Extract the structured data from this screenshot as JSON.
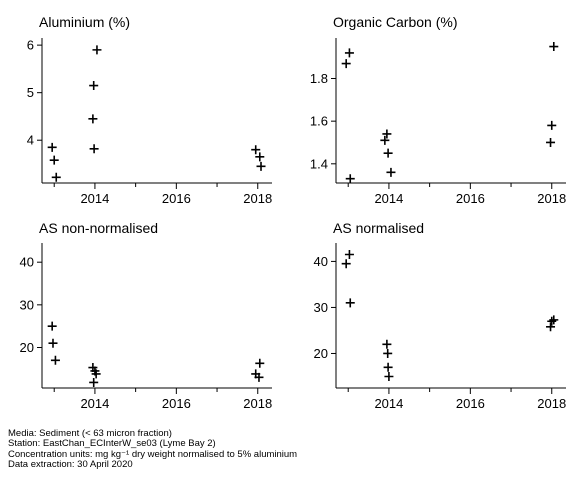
{
  "chart_data": [
    {
      "type": "scatter",
      "title": "Aluminium (%)",
      "x_ticks": [
        2014,
        2016,
        2018
      ],
      "x_range": [
        2012.7,
        2018.35
      ],
      "y_range": [
        3.1,
        6.15
      ],
      "y_ticks": [
        4,
        5,
        6
      ],
      "points": [
        {
          "x": 2012.95,
          "y": 3.85
        },
        {
          "x": 2013.0,
          "y": 3.58
        },
        {
          "x": 2013.05,
          "y": 3.22
        },
        {
          "x": 2013.95,
          "y": 4.45
        },
        {
          "x": 2013.97,
          "y": 5.15
        },
        {
          "x": 2013.98,
          "y": 3.82
        },
        {
          "x": 2014.05,
          "y": 5.9
        },
        {
          "x": 2017.95,
          "y": 3.8
        },
        {
          "x": 2018.05,
          "y": 3.65
        },
        {
          "x": 2018.08,
          "y": 3.45
        }
      ]
    },
    {
      "type": "scatter",
      "title": "Organic Carbon (%)",
      "x_ticks": [
        2014,
        2016,
        2018
      ],
      "x_range": [
        2012.7,
        2018.35
      ],
      "y_range": [
        1.31,
        1.99
      ],
      "y_ticks": [
        1.4,
        1.6,
        1.8
      ],
      "points": [
        {
          "x": 2012.95,
          "y": 1.87
        },
        {
          "x": 2013.03,
          "y": 1.92
        },
        {
          "x": 2013.05,
          "y": 1.33
        },
        {
          "x": 2013.9,
          "y": 1.51
        },
        {
          "x": 2013.95,
          "y": 1.54
        },
        {
          "x": 2013.98,
          "y": 1.45
        },
        {
          "x": 2014.05,
          "y": 1.36
        },
        {
          "x": 2017.97,
          "y": 1.5
        },
        {
          "x": 2018.0,
          "y": 1.58
        },
        {
          "x": 2018.05,
          "y": 1.95
        }
      ]
    },
    {
      "type": "scatter",
      "title": "AS non-normalised",
      "x_ticks": [
        2014,
        2016,
        2018
      ],
      "x_range": [
        2012.7,
        2018.35
      ],
      "y_range": [
        10.5,
        44.5
      ],
      "y_ticks": [
        20,
        30,
        40
      ],
      "points": [
        {
          "x": 2012.95,
          "y": 25.0
        },
        {
          "x": 2012.97,
          "y": 21.0
        },
        {
          "x": 2013.03,
          "y": 17.0
        },
        {
          "x": 2013.95,
          "y": 15.3
        },
        {
          "x": 2013.97,
          "y": 11.8
        },
        {
          "x": 2014.0,
          "y": 14.5
        },
        {
          "x": 2014.03,
          "y": 13.8
        },
        {
          "x": 2017.95,
          "y": 13.8
        },
        {
          "x": 2018.03,
          "y": 13.0
        },
        {
          "x": 2018.05,
          "y": 16.3
        }
      ]
    },
    {
      "type": "scatter",
      "title": "AS normalised",
      "x_ticks": [
        2014,
        2016,
        2018
      ],
      "x_range": [
        2012.7,
        2018.35
      ],
      "y_range": [
        12.5,
        44.0
      ],
      "y_ticks": [
        20,
        30,
        40
      ],
      "points": [
        {
          "x": 2012.95,
          "y": 39.5
        },
        {
          "x": 2013.03,
          "y": 41.5
        },
        {
          "x": 2013.05,
          "y": 31.0
        },
        {
          "x": 2013.95,
          "y": 22.0
        },
        {
          "x": 2013.97,
          "y": 20.0
        },
        {
          "x": 2013.98,
          "y": 17.0
        },
        {
          "x": 2014.0,
          "y": 15.0
        },
        {
          "x": 2017.97,
          "y": 25.8
        },
        {
          "x": 2018.0,
          "y": 27.0
        },
        {
          "x": 2018.05,
          "y": 27.3
        }
      ]
    }
  ],
  "footer": {
    "media": "Media: Sediment (< 63 micron fraction)",
    "station": "Station: EastChan_ECInterW_se03 (Lyme Bay 2)",
    "units": "Concentration units: mg kg⁻¹ dry weight normalised to 5% aluminium",
    "extraction": "Data extraction: 30 April 2020"
  }
}
